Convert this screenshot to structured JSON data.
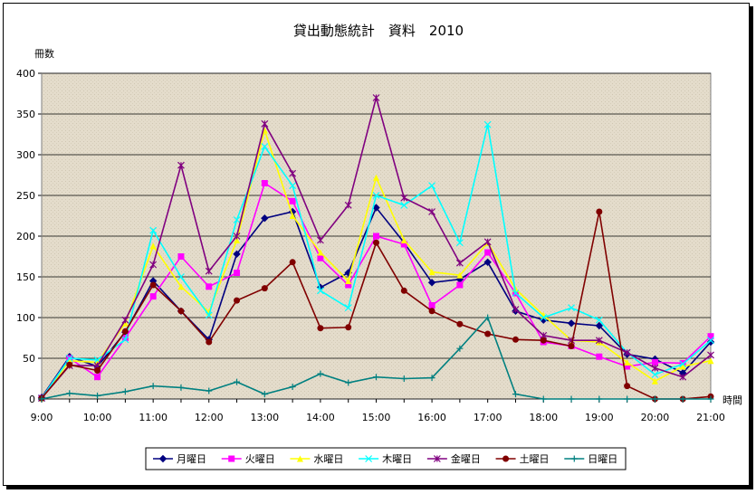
{
  "chart_data": {
    "type": "line",
    "title": "貸出動態統計　資料　2010",
    "ylabel": "冊数",
    "xlabel": "時間",
    "ylim": [
      0,
      400
    ],
    "yticks": [
      0,
      50,
      100,
      150,
      200,
      250,
      300,
      350,
      400
    ],
    "x_labels": [
      "9:00",
      "10:00",
      "11:00",
      "12:00",
      "13:00",
      "14:00",
      "15:00",
      "16:00",
      "17:00",
      "18:00",
      "19:00",
      "20:00",
      "21:00"
    ],
    "x": [
      9,
      9.5,
      10,
      10.5,
      11,
      11.5,
      12,
      12.5,
      13,
      13.5,
      14,
      14.5,
      15,
      15.5,
      16,
      16.5,
      17,
      17.5,
      18,
      18.5,
      19,
      19.5,
      20,
      20.5,
      21
    ],
    "grid": true,
    "legend": "bottom",
    "series": [
      {
        "name": "月曜日",
        "color": "#000080",
        "marker": "diamond",
        "values": [
          2,
          52,
          40,
          82,
          145,
          108,
          73,
          178,
          222,
          230,
          137,
          155,
          235,
          192,
          143,
          147,
          168,
          108,
          97,
          93,
          90,
          55,
          49,
          32,
          70
        ]
      },
      {
        "name": "火曜日",
        "color": "#ff00ff",
        "marker": "square",
        "values": [
          1,
          50,
          27,
          75,
          126,
          175,
          138,
          155,
          265,
          243,
          173,
          140,
          200,
          190,
          115,
          140,
          180,
          130,
          70,
          65,
          52,
          40,
          45,
          44,
          77
        ]
      },
      {
        "name": "水曜日",
        "color": "#ffff00",
        "marker": "triangle",
        "values": [
          1,
          47,
          45,
          93,
          188,
          138,
          107,
          195,
          330,
          225,
          180,
          145,
          272,
          195,
          156,
          152,
          192,
          135,
          103,
          72,
          70,
          45,
          22,
          40,
          47
        ]
      },
      {
        "name": "木曜日",
        "color": "#00ffff",
        "marker": "x",
        "values": [
          1,
          50,
          48,
          73,
          207,
          150,
          103,
          220,
          310,
          262,
          133,
          112,
          250,
          238,
          262,
          192,
          337,
          130,
          100,
          112,
          97,
          57,
          30,
          43,
          72
        ]
      },
      {
        "name": "金曜日",
        "color": "#800080",
        "marker": "star",
        "values": [
          1,
          41,
          41,
          97,
          165,
          287,
          157,
          200,
          338,
          277,
          195,
          238,
          370,
          247,
          230,
          167,
          193,
          110,
          78,
          72,
          72,
          57,
          38,
          27,
          54
        ]
      },
      {
        "name": "土曜日",
        "color": "#800000",
        "marker": "circle",
        "values": [
          1,
          42,
          35,
          83,
          140,
          108,
          70,
          121,
          136,
          168,
          87,
          88,
          192,
          133,
          108,
          92,
          80,
          73,
          72,
          65,
          230,
          16,
          0,
          0,
          3
        ]
      },
      {
        "name": "日曜日",
        "color": "#008080",
        "marker": "plus",
        "values": [
          0,
          7,
          4,
          9,
          16,
          14,
          10,
          21,
          6,
          15,
          31,
          20,
          27,
          25,
          26,
          62,
          100,
          6,
          0,
          0,
          0,
          0,
          0,
          0,
          0
        ]
      }
    ]
  }
}
